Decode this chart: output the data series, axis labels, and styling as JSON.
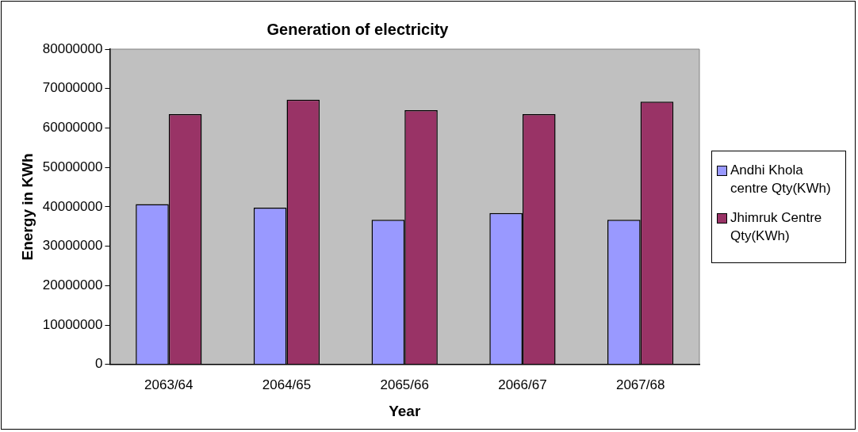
{
  "chart_data": {
    "type": "bar",
    "title": "Generation of electricity",
    "xlabel": "Year",
    "ylabel": "Energy in KWh",
    "categories": [
      "2063/64",
      "2064/65",
      "2065/66",
      "2066/67",
      "2067/68"
    ],
    "series": [
      {
        "name": "Andhi Khola centre Qty(KWh)",
        "color": "#9999ff",
        "values": [
          40700000,
          39800000,
          36700000,
          38400000,
          36700000
        ]
      },
      {
        "name": "Jhimruk Centre Qty(KWh)",
        "color": "#993366",
        "values": [
          63500000,
          67200000,
          64500000,
          63500000,
          66700000
        ]
      }
    ],
    "ylim": [
      0,
      80000000
    ],
    "yticks": [
      0,
      10000000,
      20000000,
      30000000,
      40000000,
      50000000,
      60000000,
      70000000,
      80000000
    ],
    "grid": false,
    "legend": "right"
  }
}
